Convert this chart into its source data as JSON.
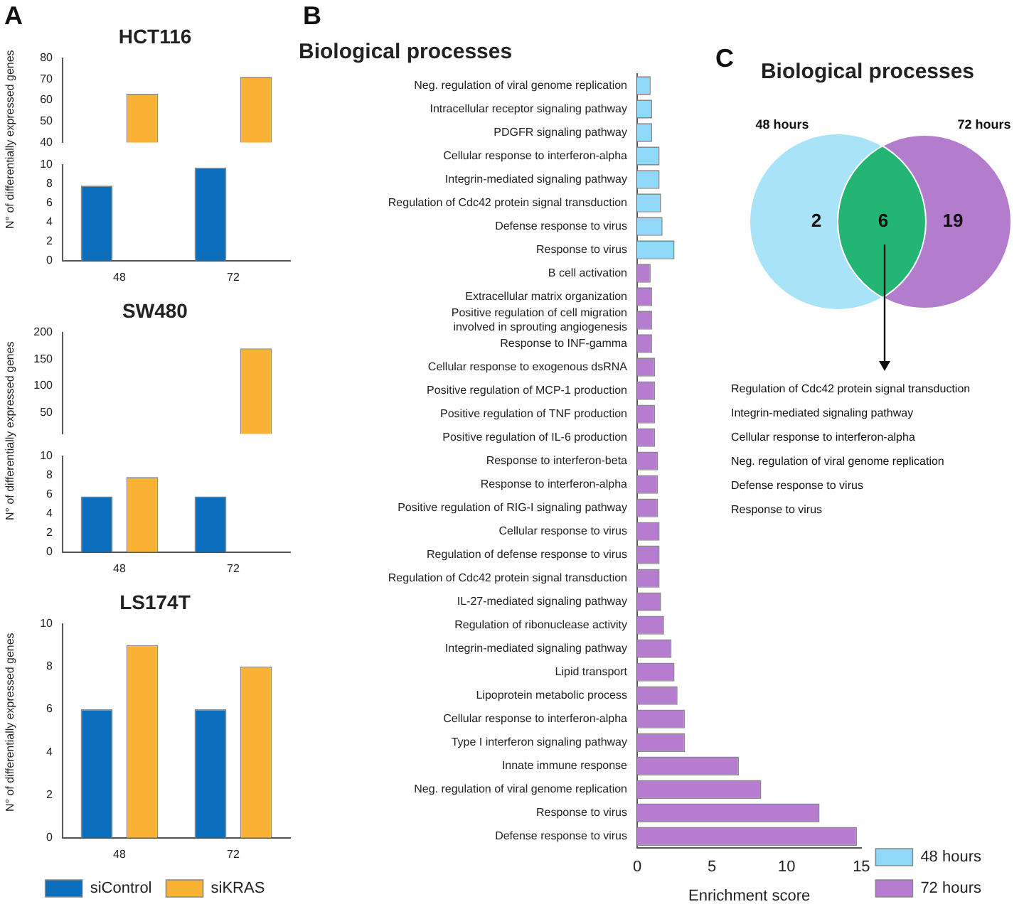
{
  "chart_data": [
    {
      "type": "bar",
      "title": "HCT116",
      "annotations": [
        "A"
      ],
      "categories": [
        "48",
        "72"
      ],
      "tick_labels": "y",
      "ylim": [
        40,
        80
      ],
      "yticks": [
        40,
        50,
        60,
        70,
        80
      ],
      "legend": false,
      "series": [
        {
          "color": "#0a6ebd",
          "values": [
            null,
            null
          ]
        },
        {
          "color": "#f9b233",
          "values": [
            63,
            71
          ]
        }
      ]
    },
    {
      "type": "bar",
      "categories": [
        "48",
        "72"
      ],
      "ylabel": "N° of differentially expressed genes",
      "ylim": [
        0,
        10
      ],
      "yticks": [
        0,
        2,
        4,
        6,
        8,
        10
      ],
      "legend": false,
      "series": [
        {
          "color": "#0a6ebd",
          "values": [
            7.8,
            9.7
          ]
        },
        {
          "color": "#f9b233",
          "values": [
            null,
            null
          ]
        }
      ]
    },
    {
      "type": "bar",
      "title": "SW480",
      "categories": [
        "48",
        "72"
      ],
      "tick_labels": "y",
      "ylim": [
        10,
        200
      ],
      "yticks": [
        50,
        100,
        150,
        200
      ],
      "legend": false,
      "series": [
        {
          "color": "#0a6ebd",
          "values": [
            null,
            null
          ]
        },
        {
          "color": "#f9b233",
          "values": [
            null,
            170
          ]
        }
      ]
    },
    {
      "type": "bar",
      "categories": [
        "48",
        "72"
      ],
      "ylabel": "N° of differentially expressed genes",
      "ylim": [
        0,
        10
      ],
      "yticks": [
        0,
        2,
        4,
        6,
        8,
        10
      ],
      "legend": false,
      "series": [
        {
          "color": "#0a6ebd",
          "values": [
            5.8,
            5.8
          ]
        },
        {
          "color": "#f9b233",
          "values": [
            7.8,
            null
          ]
        }
      ]
    },
    {
      "type": "bar",
      "title": "LS174T",
      "categories": [
        "48",
        "72"
      ],
      "ylabel": "N° of differentially expressed genes",
      "ylim": [
        0,
        10
      ],
      "yticks": [
        0,
        2,
        4,
        6,
        8,
        10
      ],
      "legend": "bottom",
      "series": [
        {
          "name": "siControl",
          "color": "#0a6ebd",
          "values": [
            6,
            6
          ]
        },
        {
          "name": "siKRAS",
          "color": "#f9b233",
          "values": [
            9,
            8
          ]
        }
      ]
    },
    {
      "type": "bar",
      "orientation": "horizontal",
      "title": "Biological processes",
      "annotations": [
        "B"
      ],
      "xlabel": "Enrichment score",
      "xlim": [
        0,
        15
      ],
      "xticks": [
        0,
        5,
        10,
        15
      ],
      "legend": "bottom right",
      "categories": [
        "Neg. regulation of viral genome replication",
        "Intracellular receptor signaling pathway",
        "PDGFR signaling pathway",
        "Cellular response to interferon-alpha",
        "Integrin-mediated signaling pathway",
        "Regulation of Cdc42 protein signal transduction",
        "Defense response to virus",
        "Response to virus",
        "B cell activation",
        "Extracellular matrix organization",
        "Positive regulation of cell migration involved in sprouting angiogenesis",
        "Response to INF-gamma",
        "Cellular response to exogenous dsRNA",
        "Positive regulation of MCP-1 production",
        "Positive regulation of TNF production",
        "Positive regulation of IL-6 production",
        "Response to interferon-beta",
        "Response to interferon-alpha",
        "Positive regulation of RIG-I signaling pathway",
        "Cellular response to virus",
        "Regulation of defense response to virus",
        "Regulation of Cdc42 protein signal transduction",
        "IL-27-mediated signaling pathway",
        "Regulation of ribonuclease activity",
        "Integrin-mediated signaling pathway",
        "Lipid transport",
        "Lipoprotein metabolic process",
        "Cellular response to interferon-alpha",
        "Type I interferon signaling pathway",
        "Innate immune response",
        "Neg. regulation of viral genome replication",
        "Response to virus",
        "Defense response to virus"
      ],
      "series": [
        {
          "name": "48 hours",
          "color": "#8fd8f8",
          "values": [
            0.9,
            1.0,
            1.0,
            1.5,
            1.5,
            1.6,
            1.7,
            2.5,
            null,
            null,
            null,
            null,
            null,
            null,
            null,
            null,
            null,
            null,
            null,
            null,
            null,
            null,
            null,
            null,
            null,
            null,
            null,
            null,
            null,
            null,
            null,
            null,
            null
          ]
        },
        {
          "name": "72 hours",
          "color": "#b57ccf",
          "values": [
            null,
            null,
            null,
            null,
            null,
            null,
            null,
            null,
            0.9,
            1.0,
            1.0,
            1.0,
            1.2,
            1.2,
            1.2,
            1.2,
            1.4,
            1.4,
            1.4,
            1.5,
            1.5,
            1.5,
            1.6,
            1.8,
            2.3,
            2.5,
            2.7,
            3.2,
            3.2,
            6.8,
            8.3,
            12.2,
            14.7
          ]
        }
      ]
    },
    {
      "type": "other",
      "title": "Biological processes",
      "categories": [
        "48 hours",
        null,
        "72 hours"
      ],
      "values": [
        2,
        6,
        19
      ],
      "data_labels": true,
      "colors": [
        "#a9e3f8",
        "#23b573",
        "#b37ccc"
      ],
      "annotations": [
        "C",
        "Regulation of Cdc42 protein signal transduction",
        "Integrin-mediated signaling pathway",
        "Cellular response to interferon-alpha",
        "Neg. regulation of viral genome replication",
        "Defense response to virus",
        "Response to virus"
      ]
    }
  ]
}
